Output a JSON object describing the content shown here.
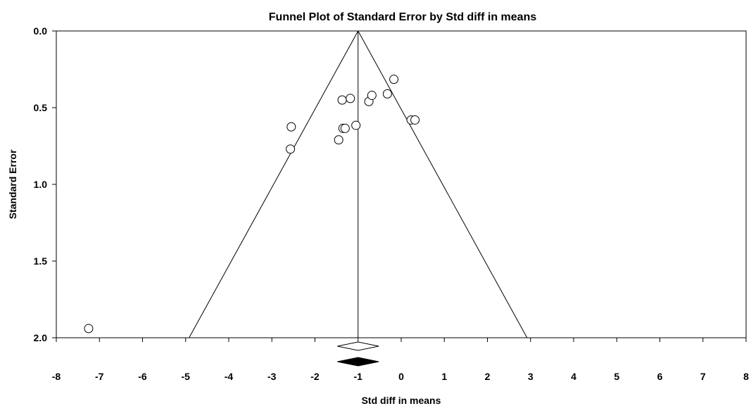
{
  "chart_data": {
    "type": "scatter",
    "title": "Funnel Plot of Standard Error by Std diff in means",
    "xlabel": "Std diff in means",
    "ylabel": "Standard Error",
    "xlim": [
      -8,
      8
    ],
    "ylim": [
      0,
      2
    ],
    "y_inverted": true,
    "x_ticks": [
      "-8",
      "-7",
      "-6",
      "-5",
      "-4",
      "-3",
      "-2",
      "-1",
      "0",
      "1",
      "2",
      "3",
      "4",
      "5",
      "6",
      "7",
      "8"
    ],
    "y_ticks": [
      "0.0",
      "0.5",
      "1.0",
      "1.5",
      "2.0"
    ],
    "pooled_estimate": -1.0,
    "funnel_multiplier": 1.96,
    "points": [
      {
        "x": -7.25,
        "y": 1.94
      },
      {
        "x": -2.55,
        "y": 0.625
      },
      {
        "x": -2.57,
        "y": 0.77
      },
      {
        "x": -1.45,
        "y": 0.71
      },
      {
        "x": -1.35,
        "y": 0.635
      },
      {
        "x": -1.3,
        "y": 0.635
      },
      {
        "x": -1.05,
        "y": 0.615
      },
      {
        "x": -1.37,
        "y": 0.45
      },
      {
        "x": -1.18,
        "y": 0.44
      },
      {
        "x": -0.75,
        "y": 0.46
      },
      {
        "x": -0.68,
        "y": 0.42
      },
      {
        "x": -0.32,
        "y": 0.41
      },
      {
        "x": -0.17,
        "y": 0.315
      },
      {
        "x": 0.23,
        "y": 0.58
      },
      {
        "x": 0.32,
        "y": 0.58
      }
    ],
    "summary_diamonds": [
      {
        "kind": "observed",
        "center": -1.0,
        "half_width": 0.48,
        "fill": "#ffffff"
      },
      {
        "kind": "adjusted",
        "center": -1.0,
        "half_width": 0.48,
        "fill": "#000000"
      }
    ],
    "grid": false
  }
}
